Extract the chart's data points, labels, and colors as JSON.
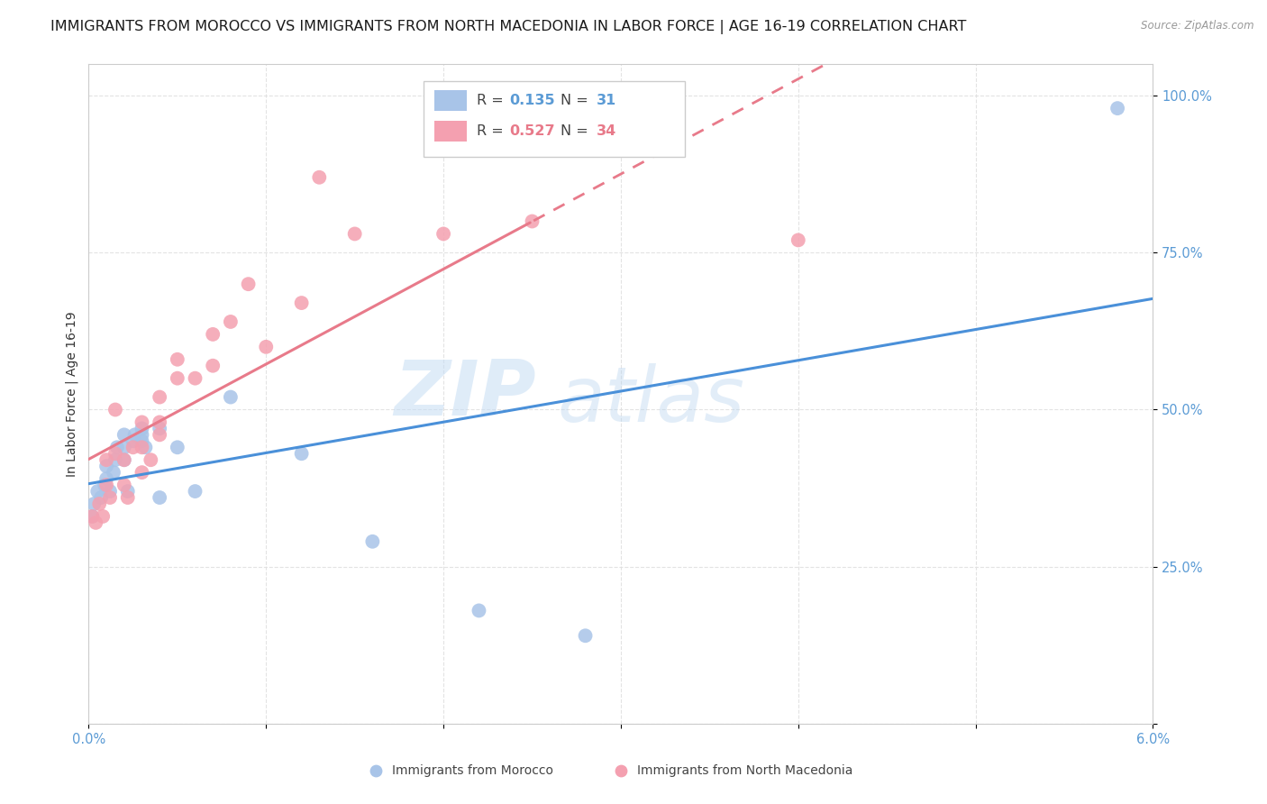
{
  "title": "IMMIGRANTS FROM MOROCCO VS IMMIGRANTS FROM NORTH MACEDONIA IN LABOR FORCE | AGE 16-19 CORRELATION CHART",
  "source": "Source: ZipAtlas.com",
  "ylabel": "In Labor Force | Age 16-19",
  "xlim": [
    0.0,
    0.06
  ],
  "ylim": [
    0.0,
    1.05
  ],
  "morocco_R": 0.135,
  "morocco_N": 31,
  "macedonia_R": 0.527,
  "macedonia_N": 34,
  "morocco_color": "#a8c4e8",
  "macedonia_color": "#f4a0b0",
  "morocco_line_color": "#4a90d9",
  "macedonia_line_color": "#e87a8a",
  "watermark_zip": "ZIP",
  "watermark_atlas": "atlas",
  "bg_color": "#ffffff",
  "grid_color": "#e0e0e0",
  "morocco_x": [
    0.0002,
    0.0004,
    0.0005,
    0.0007,
    0.0008,
    0.001,
    0.001,
    0.0012,
    0.0013,
    0.0015,
    0.0015,
    0.002,
    0.002,
    0.002,
    0.0022,
    0.0025,
    0.0025,
    0.003,
    0.003,
    0.003,
    0.0035,
    0.004,
    0.004,
    0.005,
    0.006,
    0.008,
    0.012,
    0.016,
    0.022,
    0.028,
    0.058
  ],
  "morocco_y": [
    0.33,
    0.35,
    0.37,
    0.36,
    0.38,
    0.38,
    0.41,
    0.36,
    0.4,
    0.42,
    0.43,
    0.41,
    0.43,
    0.45,
    0.37,
    0.44,
    0.46,
    0.44,
    0.46,
    0.46,
    0.44,
    0.46,
    0.35,
    0.44,
    0.36,
    0.51,
    0.42,
    0.29,
    0.17,
    0.14,
    0.98
  ],
  "macedonia_x": [
    0.0002,
    0.0004,
    0.0006,
    0.0008,
    0.001,
    0.001,
    0.0012,
    0.0015,
    0.0015,
    0.002,
    0.002,
    0.0022,
    0.0025,
    0.003,
    0.003,
    0.003,
    0.0035,
    0.004,
    0.004,
    0.004,
    0.005,
    0.005,
    0.006,
    0.007,
    0.007,
    0.008,
    0.009,
    0.01,
    0.012,
    0.013,
    0.015,
    0.02,
    0.025,
    0.04
  ],
  "macedonia_y": [
    0.33,
    0.32,
    0.35,
    0.33,
    0.38,
    0.42,
    0.36,
    0.43,
    0.5,
    0.38,
    0.42,
    0.36,
    0.44,
    0.4,
    0.44,
    0.48,
    0.42,
    0.46,
    0.48,
    0.52,
    0.55,
    0.58,
    0.55,
    0.57,
    0.62,
    0.64,
    0.7,
    0.6,
    0.67,
    0.87,
    0.78,
    0.78,
    0.8,
    0.77
  ],
  "title_fontsize": 11.5,
  "label_fontsize": 10,
  "tick_fontsize": 10.5
}
